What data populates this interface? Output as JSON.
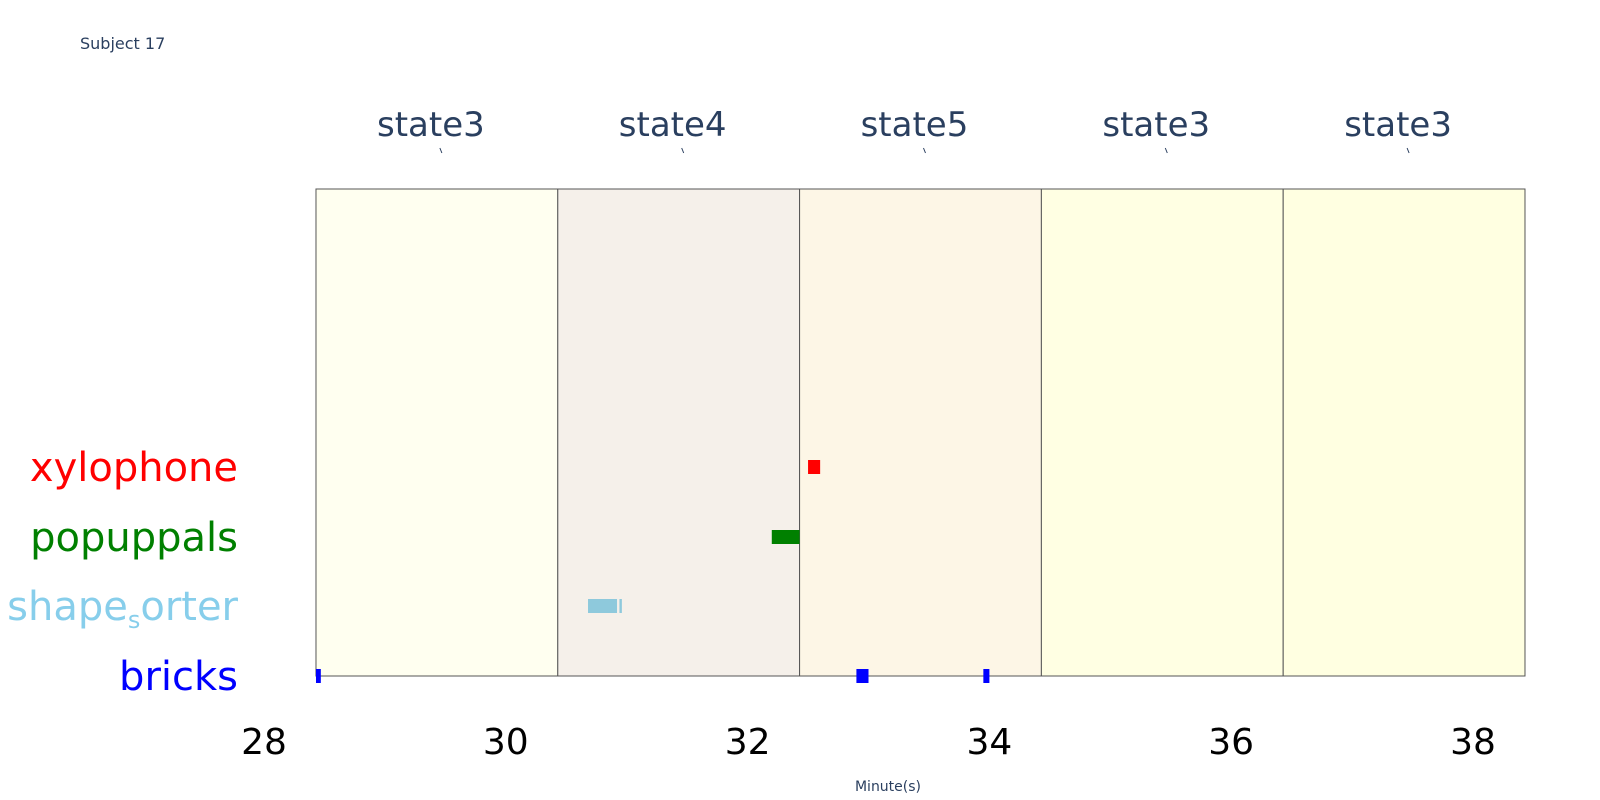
{
  "title": "Subject 17",
  "chart_data": {
    "type": "bar",
    "xlabel": "Minute(s)",
    "xlim": [
      28,
      38
    ],
    "xticks": [
      28,
      30,
      32,
      34,
      36,
      38
    ],
    "states": [
      {
        "label": "state3",
        "start": 28.43,
        "end": 30.43,
        "color": "#fffff0"
      },
      {
        "label": "state4",
        "start": 30.43,
        "end": 32.43,
        "color": "#f5f0ea"
      },
      {
        "label": "state5",
        "start": 32.43,
        "end": 34.43,
        "color": "#fdf6e6"
      },
      {
        "label": "state3",
        "start": 34.43,
        "end": 36.43,
        "color": "#ffffe3"
      },
      {
        "label": "state3",
        "start": 36.43,
        "end": 38.43,
        "color": "#ffffe1"
      }
    ],
    "rows": [
      {
        "name": "xylophone",
        "color": "#ff0000",
        "events": [
          [
            32.5,
            32.6
          ]
        ]
      },
      {
        "name": "popuppals",
        "color": "#008000",
        "events": [
          [
            32.2,
            32.43
          ]
        ]
      },
      {
        "name": "shape_sorter",
        "color": "#8ec9dc",
        "events": [
          [
            30.68,
            30.92
          ],
          [
            30.94,
            30.96
          ]
        ]
      },
      {
        "name": "bricks",
        "color": "#0000ff",
        "events": [
          [
            28.43,
            28.47
          ],
          [
            32.9,
            33.0
          ],
          [
            33.95,
            34.0
          ]
        ]
      }
    ],
    "row_labels": [
      {
        "main": "xylophone",
        "sub": "",
        "rest": "",
        "color": "#ff0000"
      },
      {
        "main": "popuppals",
        "sub": "",
        "rest": "",
        "color": "#008000"
      },
      {
        "main": "shape",
        "sub": "s",
        "rest": "orter",
        "color": "#87ceeb"
      },
      {
        "main": "bricks",
        "sub": "",
        "rest": "",
        "color": "#0000ff"
      }
    ]
  }
}
